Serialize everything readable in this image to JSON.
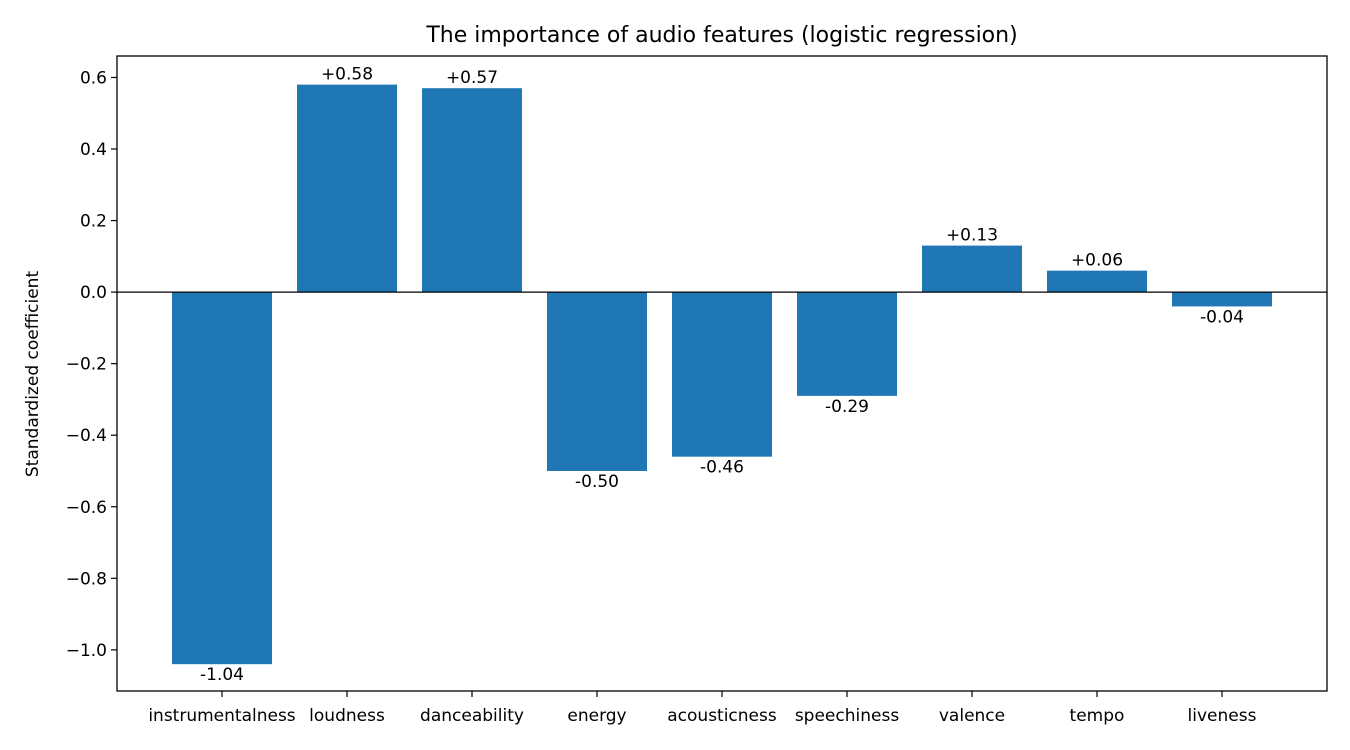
{
  "chart_data": {
    "type": "bar",
    "title": "The importance of audio features (logistic regression)",
    "xlabel": "",
    "ylabel": "Standardized coefficient",
    "categories": [
      "instrumentalness",
      "loudness",
      "danceability",
      "energy",
      "acousticness",
      "speechiness",
      "valence",
      "tempo",
      "liveness"
    ],
    "values": [
      -1.04,
      0.58,
      0.57,
      -0.5,
      -0.46,
      -0.29,
      0.13,
      0.06,
      -0.04
    ],
    "value_labels": [
      "-1.04",
      "+0.58",
      "+0.57",
      "-0.50",
      "-0.46",
      "-0.29",
      "+0.13",
      "+0.06",
      "-0.04"
    ],
    "ylim": [
      -1.115,
      0.66
    ],
    "yticks": [
      -1.0,
      -0.8,
      -0.6,
      -0.4,
      -0.2,
      0.0,
      0.2,
      0.4,
      0.6
    ],
    "ytick_labels": [
      "−1.0",
      "−0.8",
      "−0.6",
      "−0.4",
      "−0.2",
      "0.0",
      "0.2",
      "0.4",
      "0.6"
    ],
    "bar_color": "#1f77b4",
    "zero_line_color": "#000000",
    "grid": false,
    "legend": "none"
  }
}
